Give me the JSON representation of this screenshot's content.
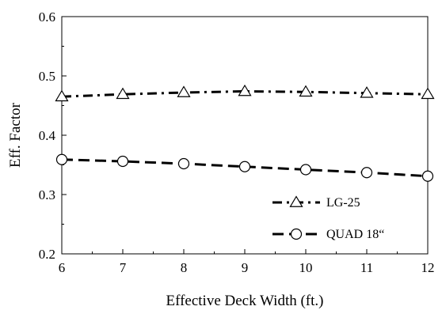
{
  "chart_data": {
    "type": "line",
    "xlabel": "Effective Deck Width (ft.)",
    "ylabel": "Eff. Factor",
    "xlim": [
      6,
      12
    ],
    "ylim": [
      0.2,
      0.6
    ],
    "x_ticks": [
      "6",
      "7",
      "8",
      "9",
      "10",
      "11",
      "12"
    ],
    "y_ticks": [
      "0.2",
      "0.3",
      "0.4",
      "0.5",
      "0.6"
    ],
    "grid": false,
    "legend_position": "bottom-right",
    "x": [
      6,
      7,
      8,
      9,
      10,
      11,
      12
    ],
    "series": [
      {
        "name": "LG-25",
        "marker": "triangle",
        "line_style": "dash-dot",
        "values": [
          0.465,
          0.469,
          0.472,
          0.474,
          0.473,
          0.471,
          0.469
        ]
      },
      {
        "name": "QUAD 18“",
        "marker": "circle",
        "line_style": "dashed",
        "values": [
          0.359,
          0.356,
          0.352,
          0.347,
          0.342,
          0.337,
          0.331
        ]
      }
    ],
    "colors": {
      "line": "#000000",
      "background": "#ffffff"
    }
  }
}
